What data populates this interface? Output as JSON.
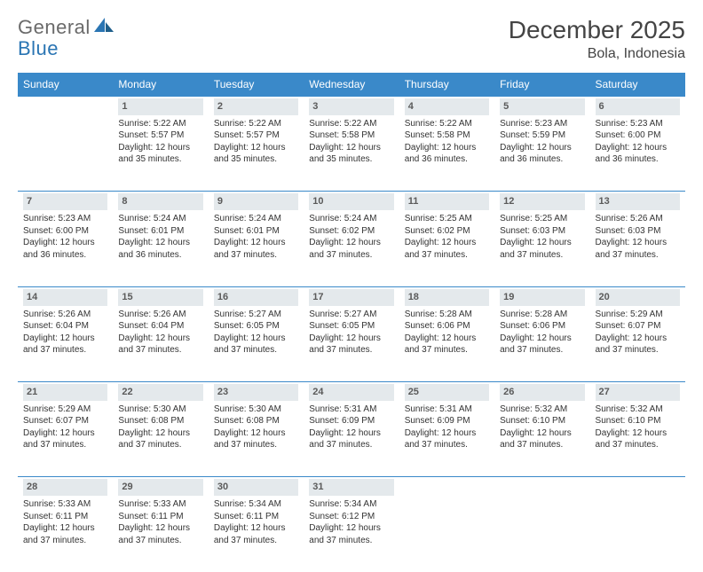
{
  "header": {
    "logo_text_1": "General",
    "logo_text_2": "Blue",
    "month_title": "December 2025",
    "location": "Bola, Indonesia"
  },
  "styling": {
    "header_bg": "#3a89c9",
    "header_text": "#ffffff",
    "daynum_bg": "#e4e9ec",
    "daynum_color": "#5a5a5a",
    "rule_color": "#3a89c9",
    "body_text": "#333333",
    "title_color": "#444444",
    "logo_gray": "#6a6a6a",
    "logo_blue": "#2a75b3",
    "font_family": "Arial",
    "month_fontsize": 28,
    "location_fontsize": 16,
    "th_fontsize": 12,
    "cell_fontsize": 10
  },
  "weekdays": [
    "Sunday",
    "Monday",
    "Tuesday",
    "Wednesday",
    "Thursday",
    "Friday",
    "Saturday"
  ],
  "weeks": [
    [
      null,
      {
        "n": "1",
        "sunrise": "Sunrise: 5:22 AM",
        "sunset": "Sunset: 5:57 PM",
        "day1": "Daylight: 12 hours",
        "day2": "and 35 minutes."
      },
      {
        "n": "2",
        "sunrise": "Sunrise: 5:22 AM",
        "sunset": "Sunset: 5:57 PM",
        "day1": "Daylight: 12 hours",
        "day2": "and 35 minutes."
      },
      {
        "n": "3",
        "sunrise": "Sunrise: 5:22 AM",
        "sunset": "Sunset: 5:58 PM",
        "day1": "Daylight: 12 hours",
        "day2": "and 35 minutes."
      },
      {
        "n": "4",
        "sunrise": "Sunrise: 5:22 AM",
        "sunset": "Sunset: 5:58 PM",
        "day1": "Daylight: 12 hours",
        "day2": "and 36 minutes."
      },
      {
        "n": "5",
        "sunrise": "Sunrise: 5:23 AM",
        "sunset": "Sunset: 5:59 PM",
        "day1": "Daylight: 12 hours",
        "day2": "and 36 minutes."
      },
      {
        "n": "6",
        "sunrise": "Sunrise: 5:23 AM",
        "sunset": "Sunset: 6:00 PM",
        "day1": "Daylight: 12 hours",
        "day2": "and 36 minutes."
      }
    ],
    [
      {
        "n": "7",
        "sunrise": "Sunrise: 5:23 AM",
        "sunset": "Sunset: 6:00 PM",
        "day1": "Daylight: 12 hours",
        "day2": "and 36 minutes."
      },
      {
        "n": "8",
        "sunrise": "Sunrise: 5:24 AM",
        "sunset": "Sunset: 6:01 PM",
        "day1": "Daylight: 12 hours",
        "day2": "and 36 minutes."
      },
      {
        "n": "9",
        "sunrise": "Sunrise: 5:24 AM",
        "sunset": "Sunset: 6:01 PM",
        "day1": "Daylight: 12 hours",
        "day2": "and 37 minutes."
      },
      {
        "n": "10",
        "sunrise": "Sunrise: 5:24 AM",
        "sunset": "Sunset: 6:02 PM",
        "day1": "Daylight: 12 hours",
        "day2": "and 37 minutes."
      },
      {
        "n": "11",
        "sunrise": "Sunrise: 5:25 AM",
        "sunset": "Sunset: 6:02 PM",
        "day1": "Daylight: 12 hours",
        "day2": "and 37 minutes."
      },
      {
        "n": "12",
        "sunrise": "Sunrise: 5:25 AM",
        "sunset": "Sunset: 6:03 PM",
        "day1": "Daylight: 12 hours",
        "day2": "and 37 minutes."
      },
      {
        "n": "13",
        "sunrise": "Sunrise: 5:26 AM",
        "sunset": "Sunset: 6:03 PM",
        "day1": "Daylight: 12 hours",
        "day2": "and 37 minutes."
      }
    ],
    [
      {
        "n": "14",
        "sunrise": "Sunrise: 5:26 AM",
        "sunset": "Sunset: 6:04 PM",
        "day1": "Daylight: 12 hours",
        "day2": "and 37 minutes."
      },
      {
        "n": "15",
        "sunrise": "Sunrise: 5:26 AM",
        "sunset": "Sunset: 6:04 PM",
        "day1": "Daylight: 12 hours",
        "day2": "and 37 minutes."
      },
      {
        "n": "16",
        "sunrise": "Sunrise: 5:27 AM",
        "sunset": "Sunset: 6:05 PM",
        "day1": "Daylight: 12 hours",
        "day2": "and 37 minutes."
      },
      {
        "n": "17",
        "sunrise": "Sunrise: 5:27 AM",
        "sunset": "Sunset: 6:05 PM",
        "day1": "Daylight: 12 hours",
        "day2": "and 37 minutes."
      },
      {
        "n": "18",
        "sunrise": "Sunrise: 5:28 AM",
        "sunset": "Sunset: 6:06 PM",
        "day1": "Daylight: 12 hours",
        "day2": "and 37 minutes."
      },
      {
        "n": "19",
        "sunrise": "Sunrise: 5:28 AM",
        "sunset": "Sunset: 6:06 PM",
        "day1": "Daylight: 12 hours",
        "day2": "and 37 minutes."
      },
      {
        "n": "20",
        "sunrise": "Sunrise: 5:29 AM",
        "sunset": "Sunset: 6:07 PM",
        "day1": "Daylight: 12 hours",
        "day2": "and 37 minutes."
      }
    ],
    [
      {
        "n": "21",
        "sunrise": "Sunrise: 5:29 AM",
        "sunset": "Sunset: 6:07 PM",
        "day1": "Daylight: 12 hours",
        "day2": "and 37 minutes."
      },
      {
        "n": "22",
        "sunrise": "Sunrise: 5:30 AM",
        "sunset": "Sunset: 6:08 PM",
        "day1": "Daylight: 12 hours",
        "day2": "and 37 minutes."
      },
      {
        "n": "23",
        "sunrise": "Sunrise: 5:30 AM",
        "sunset": "Sunset: 6:08 PM",
        "day1": "Daylight: 12 hours",
        "day2": "and 37 minutes."
      },
      {
        "n": "24",
        "sunrise": "Sunrise: 5:31 AM",
        "sunset": "Sunset: 6:09 PM",
        "day1": "Daylight: 12 hours",
        "day2": "and 37 minutes."
      },
      {
        "n": "25",
        "sunrise": "Sunrise: 5:31 AM",
        "sunset": "Sunset: 6:09 PM",
        "day1": "Daylight: 12 hours",
        "day2": "and 37 minutes."
      },
      {
        "n": "26",
        "sunrise": "Sunrise: 5:32 AM",
        "sunset": "Sunset: 6:10 PM",
        "day1": "Daylight: 12 hours",
        "day2": "and 37 minutes."
      },
      {
        "n": "27",
        "sunrise": "Sunrise: 5:32 AM",
        "sunset": "Sunset: 6:10 PM",
        "day1": "Daylight: 12 hours",
        "day2": "and 37 minutes."
      }
    ],
    [
      {
        "n": "28",
        "sunrise": "Sunrise: 5:33 AM",
        "sunset": "Sunset: 6:11 PM",
        "day1": "Daylight: 12 hours",
        "day2": "and 37 minutes."
      },
      {
        "n": "29",
        "sunrise": "Sunrise: 5:33 AM",
        "sunset": "Sunset: 6:11 PM",
        "day1": "Daylight: 12 hours",
        "day2": "and 37 minutes."
      },
      {
        "n": "30",
        "sunrise": "Sunrise: 5:34 AM",
        "sunset": "Sunset: 6:11 PM",
        "day1": "Daylight: 12 hours",
        "day2": "and 37 minutes."
      },
      {
        "n": "31",
        "sunrise": "Sunrise: 5:34 AM",
        "sunset": "Sunset: 6:12 PM",
        "day1": "Daylight: 12 hours",
        "day2": "and 37 minutes."
      },
      null,
      null,
      null
    ]
  ]
}
